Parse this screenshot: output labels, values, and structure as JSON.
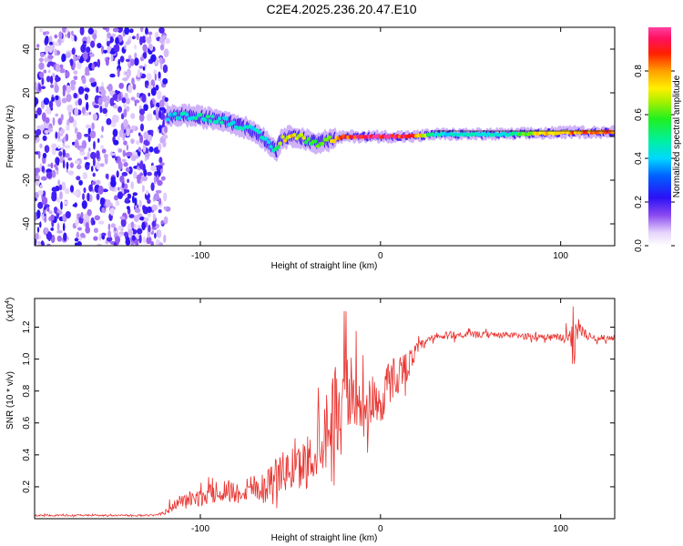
{
  "title": "C2E4.2025.236.20.47.E10",
  "chart_data": [
    {
      "type": "heatmap",
      "name": "spectrogram",
      "xlabel": "Height of straight line (km)",
      "ylabel": "Frequency (Hz)",
      "xlim": [
        -192,
        130
      ],
      "ylim": [
        -50,
        50
      ],
      "xticks": [
        -100,
        0,
        100
      ],
      "yticks": [
        -40,
        -20,
        0,
        20,
        40
      ],
      "colorbar": {
        "label": "Normalized spectral amplitude",
        "range": [
          0,
          1
        ],
        "ticks": [
          0.0,
          0.2,
          0.4,
          0.6,
          0.8
        ]
      },
      "noise_region": {
        "x_start": -192,
        "x_end": -118,
        "description_value": "scattered low amplitude across all frequencies"
      },
      "signal_track": {
        "x": [
          -118,
          -110,
          -100,
          -92,
          -85,
          -78,
          -72,
          -66,
          -62,
          -58,
          -55,
          -50,
          -45,
          -40,
          -35,
          -30,
          -25,
          -20,
          -10,
          0,
          10,
          20,
          30,
          50,
          70,
          90,
          108,
          130
        ],
        "freq": [
          9,
          10,
          9,
          8,
          7,
          5,
          3,
          0,
          -3,
          -7,
          -1,
          0,
          0,
          -2,
          -3,
          -2,
          -1,
          0,
          0,
          0,
          0,
          0,
          1,
          1,
          1,
          1.5,
          2,
          2
        ],
        "amplitude": [
          0.4,
          0.45,
          0.5,
          0.5,
          0.45,
          0.45,
          0.45,
          0.5,
          0.45,
          0.5,
          0.7,
          0.8,
          0.75,
          0.6,
          0.6,
          0.7,
          0.8,
          0.9,
          0.95,
          1.0,
          0.95,
          0.9,
          0.45,
          0.45,
          0.45,
          0.8,
          0.85,
          0.9
        ]
      }
    },
    {
      "type": "line",
      "name": "snr",
      "xlabel": "Height of straight line (km)",
      "ylabel": "SNR (10 * v/v)",
      "y_multiplier": "(x10",
      "y_multiplier_exp": "4",
      "y_multiplier_close": ")",
      "xlim": [
        -192,
        130
      ],
      "ylim": [
        0,
        1.38
      ],
      "xticks": [
        -100,
        0,
        100
      ],
      "yticks": [
        0.2,
        0.4,
        0.6,
        0.8,
        1.0,
        1.2
      ],
      "series": [
        {
          "name": "SNR",
          "color": "#e8322e",
          "x": [
            -192,
            -150,
            -125,
            -118,
            -112,
            -105,
            -100,
            -95,
            -90,
            -85,
            -80,
            -75,
            -70,
            -65,
            -60,
            -55,
            -50,
            -45,
            -40,
            -35,
            -30,
            -25,
            -22,
            -20,
            -18,
            -15,
            -10,
            -5,
            0,
            5,
            10,
            15,
            20,
            25,
            30,
            40,
            50,
            60,
            70,
            80,
            90,
            100,
            105,
            107,
            108,
            110,
            115,
            120,
            130
          ],
          "y": [
            0.02,
            0.02,
            0.02,
            0.05,
            0.1,
            0.12,
            0.12,
            0.15,
            0.15,
            0.18,
            0.15,
            0.18,
            0.2,
            0.18,
            0.25,
            0.28,
            0.28,
            0.3,
            0.35,
            0.45,
            0.55,
            0.7,
            0.55,
            0.9,
            0.75,
            0.8,
            0.6,
            0.75,
            0.7,
            0.85,
            0.9,
            0.95,
            1.05,
            1.1,
            1.13,
            1.15,
            1.15,
            1.15,
            1.15,
            1.14,
            1.14,
            1.13,
            1.14,
            1.12,
            1.15,
            1.2,
            1.14,
            1.13,
            1.13
          ],
          "noise_amplitude": [
            0.01,
            0.01,
            0.01,
            0.05,
            0.08,
            0.1,
            0.1,
            0.12,
            0.12,
            0.15,
            0.14,
            0.16,
            0.18,
            0.2,
            0.22,
            0.25,
            0.25,
            0.3,
            0.35,
            0.45,
            0.5,
            0.5,
            0.45,
            0.45,
            0.45,
            0.4,
            0.35,
            0.35,
            0.3,
            0.3,
            0.25,
            0.18,
            0.1,
            0.06,
            0.05,
            0.05,
            0.04,
            0.04,
            0.04,
            0.04,
            0.04,
            0.05,
            0.1,
            0.2,
            0.2,
            0.1,
            0.05,
            0.04,
            0.04
          ]
        }
      ]
    }
  ]
}
